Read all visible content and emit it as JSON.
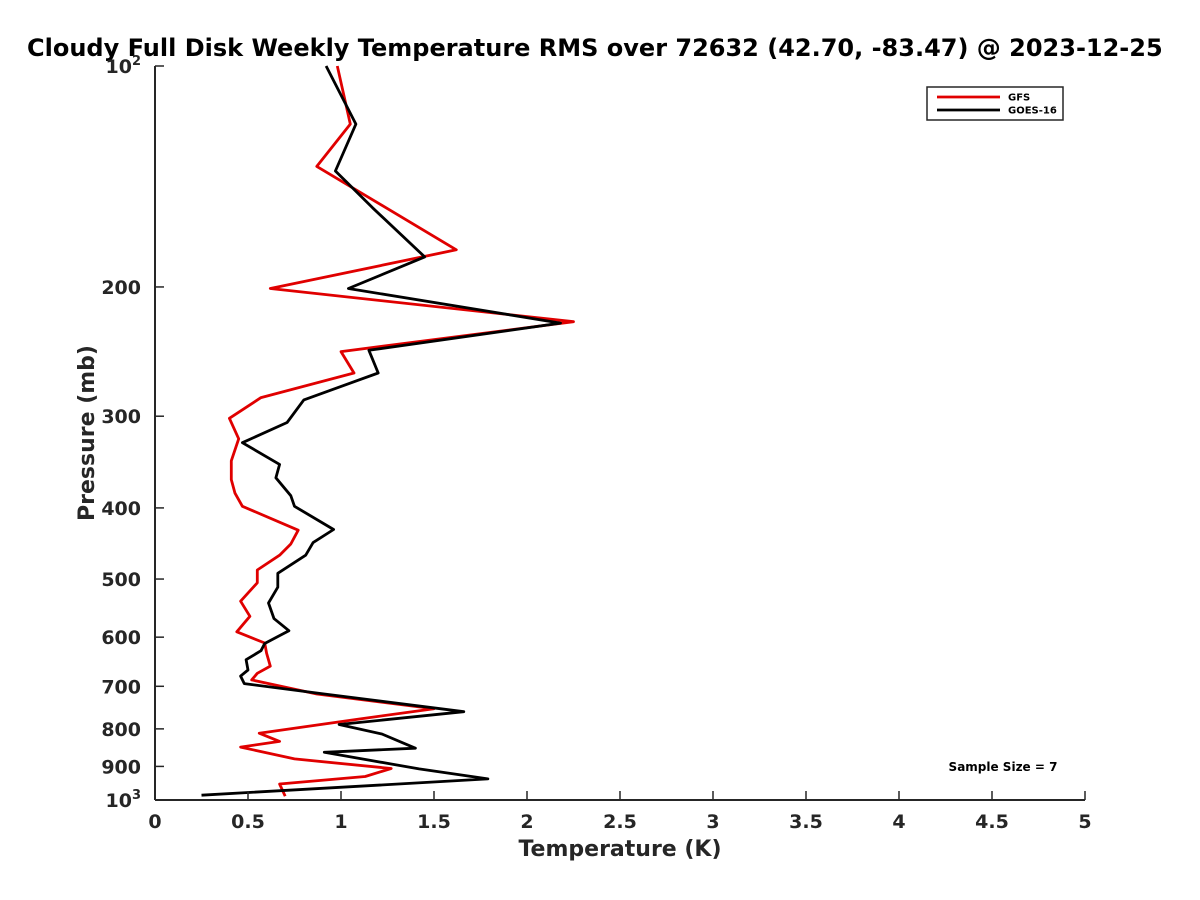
{
  "chart_data": {
    "type": "line",
    "title": "Cloudy Full Disk Weekly Temperature RMS over 72632 (42.70, -83.47) @ 2023-12-25",
    "xlabel": "Temperature (K)",
    "ylabel": "Pressure (mb)",
    "xlim": [
      0,
      5
    ],
    "ylim": [
      100,
      1000
    ],
    "y_scale": "log",
    "y_reversed": true,
    "grid": false,
    "legend_position": "top-right",
    "x_ticks": [
      0,
      0.5,
      1,
      1.5,
      2,
      2.5,
      3,
      3.5,
      4,
      4.5,
      5
    ],
    "x_tick_labels": [
      "0",
      "0.5",
      "1",
      "1.5",
      "2",
      "2.5",
      "3",
      "3.5",
      "4",
      "4.5",
      "5"
    ],
    "y_ticks": [
      100,
      200,
      300,
      400,
      500,
      600,
      700,
      800,
      900,
      1000
    ],
    "y_tick_labels": [
      {
        "base": "10",
        "exp": "2"
      },
      {
        "base": "200",
        "exp": ""
      },
      {
        "base": "300",
        "exp": ""
      },
      {
        "base": "400",
        "exp": ""
      },
      {
        "base": "500",
        "exp": ""
      },
      {
        "base": "600",
        "exp": ""
      },
      {
        "base": "700",
        "exp": ""
      },
      {
        "base": "800",
        "exp": ""
      },
      {
        "base": "900",
        "exp": ""
      },
      {
        "base": "10",
        "exp": "3"
      }
    ],
    "annotation": "Sample Size = 7",
    "series": [
      {
        "name": "GFS",
        "color": "#e00000",
        "points": [
          [
            0.98,
            100
          ],
          [
            1.05,
            120
          ],
          [
            0.87,
            137
          ],
          [
            1.62,
            178
          ],
          [
            0.62,
            201
          ],
          [
            2.25,
            223
          ],
          [
            1.0,
            245
          ],
          [
            1.07,
            262
          ],
          [
            0.57,
            283
          ],
          [
            0.4,
            302
          ],
          [
            0.45,
            322
          ],
          [
            0.41,
            345
          ],
          [
            0.41,
            366
          ],
          [
            0.43,
            382
          ],
          [
            0.47,
            398
          ],
          [
            0.77,
            429
          ],
          [
            0.73,
            448
          ],
          [
            0.67,
            464
          ],
          [
            0.55,
            486
          ],
          [
            0.55,
            506
          ],
          [
            0.46,
            536
          ],
          [
            0.51,
            562
          ],
          [
            0.44,
            590
          ],
          [
            0.59,
            611
          ],
          [
            0.6,
            631
          ],
          [
            0.62,
            657
          ],
          [
            0.55,
            672
          ],
          [
            0.52,
            686
          ],
          [
            0.87,
            717
          ],
          [
            1.5,
            751
          ],
          [
            1.09,
            776
          ],
          [
            0.56,
            811
          ],
          [
            0.67,
            832
          ],
          [
            0.46,
            847
          ],
          [
            0.75,
            879
          ],
          [
            1.27,
            906
          ],
          [
            1.13,
            929
          ],
          [
            0.67,
            951
          ],
          [
            0.7,
            988
          ]
        ]
      },
      {
        "name": "GOES-16",
        "color": "#000000",
        "points": [
          [
            0.92,
            100
          ],
          [
            1.08,
            120
          ],
          [
            0.97,
            139
          ],
          [
            1.17,
            156
          ],
          [
            1.45,
            182
          ],
          [
            1.04,
            201
          ],
          [
            2.18,
            224
          ],
          [
            1.15,
            244
          ],
          [
            1.2,
            262
          ],
          [
            0.8,
            285
          ],
          [
            0.71,
            306
          ],
          [
            0.47,
            326
          ],
          [
            0.67,
            349
          ],
          [
            0.65,
            364
          ],
          [
            0.73,
            385
          ],
          [
            0.75,
            398
          ],
          [
            0.96,
            428
          ],
          [
            0.85,
            446
          ],
          [
            0.81,
            464
          ],
          [
            0.66,
            491
          ],
          [
            0.66,
            513
          ],
          [
            0.61,
            539
          ],
          [
            0.64,
            566
          ],
          [
            0.72,
            588
          ],
          [
            0.59,
            612
          ],
          [
            0.57,
            626
          ],
          [
            0.49,
            644
          ],
          [
            0.5,
            665
          ],
          [
            0.46,
            678
          ],
          [
            0.48,
            694
          ],
          [
            0.91,
            717
          ],
          [
            1.66,
            758
          ],
          [
            0.99,
            789
          ],
          [
            1.22,
            813
          ],
          [
            1.4,
            850
          ],
          [
            0.91,
            861
          ],
          [
            1.42,
            907
          ],
          [
            1.79,
            936
          ],
          [
            0.25,
            985
          ]
        ]
      }
    ]
  }
}
